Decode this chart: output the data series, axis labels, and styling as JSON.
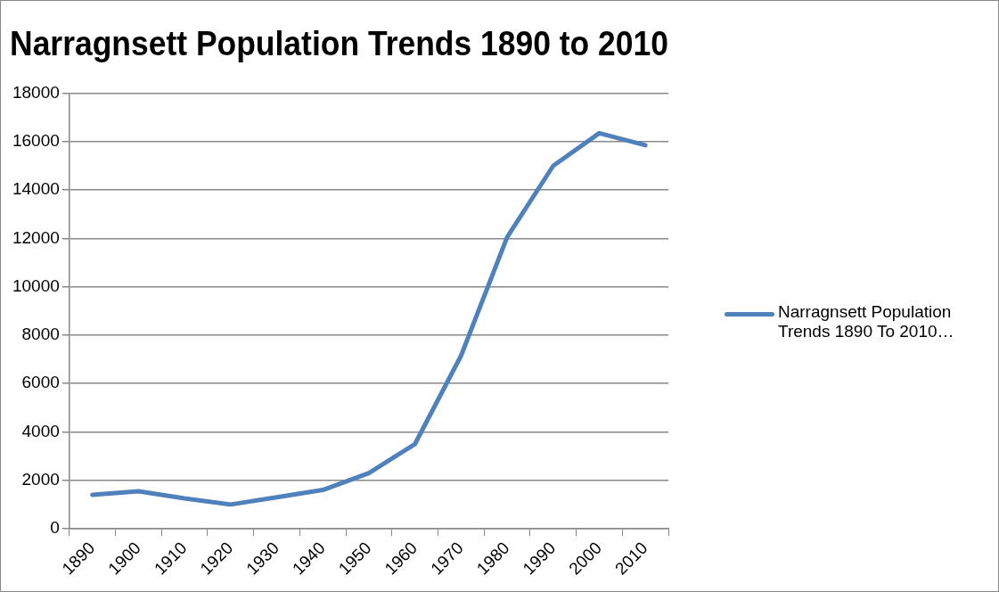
{
  "chart_data": {
    "type": "line",
    "title": "Narragnsett Population Trends 1890 to 2010",
    "categories": [
      "1890",
      "1900",
      "1910",
      "1920",
      "1930",
      "1940",
      "1950",
      "1960",
      "1970",
      "1980",
      "1990",
      "2000",
      "2010"
    ],
    "series": [
      {
        "name": "Narragnsett Population Trends 1890 To 2010…",
        "color": "#4f81bd",
        "values": [
          1400,
          1550,
          1250,
          1000,
          1300,
          1600,
          2300,
          3500,
          7150,
          12050,
          15000,
          16350,
          15850
        ]
      }
    ],
    "ylim": [
      0,
      18000
    ],
    "yticks": [
      0,
      2000,
      4000,
      6000,
      8000,
      10000,
      12000,
      14000,
      16000,
      18000
    ],
    "grid": "y",
    "legend": "right",
    "marker": "none",
    "line_style": "solid"
  }
}
